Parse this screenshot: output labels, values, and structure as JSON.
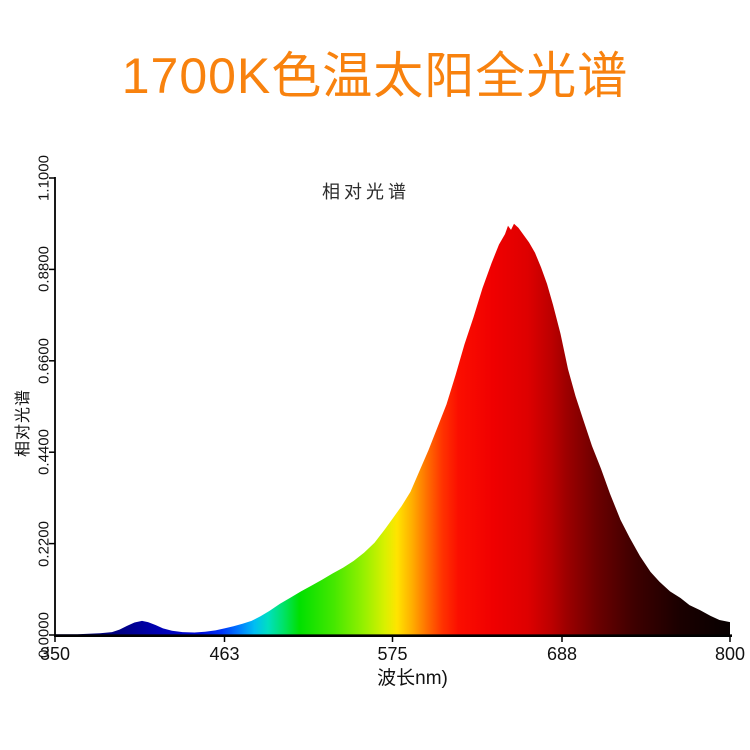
{
  "page": {
    "background": "#FFFFFF"
  },
  "header": {
    "title": "1700K色温太阳全光谱",
    "title_color": "#F8820E"
  },
  "chart_data": {
    "type": "area",
    "title": "相对光谱",
    "xlabel": "波长nm)",
    "ylabel": "相对光谱",
    "xlim": [
      350,
      800
    ],
    "ylim": [
      0,
      1.1
    ],
    "grid": false,
    "legend": "none",
    "axis_color": "#000000",
    "x_tick_labels": [
      "350",
      "463",
      "575",
      "688",
      "800"
    ],
    "x_tick_values": [
      350,
      463,
      575,
      688,
      800
    ],
    "y_tick_labels": [
      "0.0000",
      "0.2200",
      "0.4400",
      "0.6600",
      "0.8800",
      "1.1000"
    ],
    "y_tick_values": [
      0,
      0.22,
      0.44,
      0.66,
      0.88,
      1.1
    ],
    "series": [
      {
        "name": "相对光谱",
        "x": [
          350,
          365,
          380,
          388,
          393,
          398,
          403,
          408,
          412,
          417,
          422,
          428,
          435,
          443,
          450,
          457,
          463,
          469,
          475,
          481,
          487,
          493,
          500,
          507,
          514,
          521,
          528,
          535,
          542,
          549,
          556,
          563,
          570,
          575,
          581,
          587,
          593,
          599,
          605,
          611,
          617,
          623,
          629,
          635,
          641,
          646,
          650,
          652,
          654,
          656,
          659,
          662,
          666,
          670,
          674,
          678,
          682,
          687,
          692,
          697,
          702,
          708,
          714,
          720,
          727,
          733,
          740,
          747,
          753,
          760,
          767,
          773,
          780,
          787,
          793,
          800
        ],
        "values": [
          0.002,
          0.002,
          0.004,
          0.007,
          0.013,
          0.022,
          0.03,
          0.034,
          0.031,
          0.024,
          0.016,
          0.01,
          0.007,
          0.006,
          0.008,
          0.011,
          0.016,
          0.021,
          0.027,
          0.034,
          0.045,
          0.058,
          0.075,
          0.09,
          0.105,
          0.119,
          0.133,
          0.148,
          0.162,
          0.178,
          0.198,
          0.222,
          0.255,
          0.28,
          0.31,
          0.345,
          0.395,
          0.445,
          0.5,
          0.555,
          0.625,
          0.7,
          0.765,
          0.835,
          0.895,
          0.94,
          0.965,
          0.985,
          0.975,
          0.99,
          0.98,
          0.965,
          0.945,
          0.92,
          0.885,
          0.845,
          0.795,
          0.725,
          0.64,
          0.575,
          0.52,
          0.455,
          0.4,
          0.34,
          0.277,
          0.235,
          0.19,
          0.152,
          0.128,
          0.105,
          0.089,
          0.072,
          0.06,
          0.046,
          0.036,
          0.031
        ]
      }
    ],
    "peak": {
      "wavelength_nm": 656,
      "value": 0.99
    },
    "spectral_gradient": [
      {
        "nm": 350,
        "color": "#000060"
      },
      {
        "nm": 395,
        "color": "#000086"
      },
      {
        "nm": 420,
        "color": "#0000B4"
      },
      {
        "nm": 446,
        "color": "#000AD8"
      },
      {
        "nm": 461,
        "color": "#0034F8"
      },
      {
        "nm": 472,
        "color": "#0077FF"
      },
      {
        "nm": 483,
        "color": "#00BEF2"
      },
      {
        "nm": 492,
        "color": "#00DFC0"
      },
      {
        "nm": 502,
        "color": "#00E26A"
      },
      {
        "nm": 513,
        "color": "#00E000"
      },
      {
        "nm": 536,
        "color": "#45E800"
      },
      {
        "nm": 556,
        "color": "#96F000"
      },
      {
        "nm": 570,
        "color": "#D9F000"
      },
      {
        "nm": 578,
        "color": "#FFE400"
      },
      {
        "nm": 588,
        "color": "#FFAE00"
      },
      {
        "nm": 598,
        "color": "#FF6F00"
      },
      {
        "nm": 608,
        "color": "#FF3400"
      },
      {
        "nm": 619,
        "color": "#FB0E00"
      },
      {
        "nm": 642,
        "color": "#F00000"
      },
      {
        "nm": 665,
        "color": "#DE0000"
      },
      {
        "nm": 681,
        "color": "#BC0000"
      },
      {
        "nm": 691,
        "color": "#9D0000"
      },
      {
        "nm": 711,
        "color": "#6C0000"
      },
      {
        "nm": 736,
        "color": "#3E0000"
      },
      {
        "nm": 766,
        "color": "#1B0000"
      },
      {
        "nm": 800,
        "color": "#070000"
      }
    ]
  }
}
